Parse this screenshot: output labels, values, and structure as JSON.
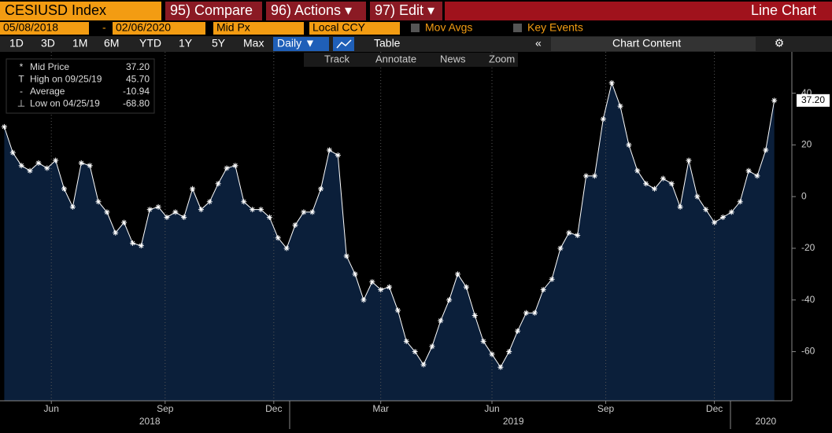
{
  "toolbar": {
    "ticker": "CESIUSD Index",
    "compare": "95) Compare",
    "actions": "96) Actions ▾",
    "edit": "97) Edit ▾",
    "view": "Line Chart",
    "start_date": "05/08/2018",
    "dash": "-",
    "end_date": "02/06/2020",
    "field": "Mid Px",
    "currency": "Local CCY",
    "mov_avgs": "Mov Avgs",
    "key_events": "Key Events",
    "periods": [
      "1D",
      "3D",
      "1M",
      "6M",
      "YTD",
      "1Y",
      "5Y",
      "Max"
    ],
    "frequency": "Daily ▼",
    "table": "Table",
    "chart_content": "Chart Content",
    "tools": [
      "Track",
      "Annotate",
      "News",
      "Zoom"
    ]
  },
  "chart_data": {
    "type": "line",
    "legend": [
      [
        "Mid Price",
        "37.20"
      ],
      [
        "High on 09/25/19",
        "45.70"
      ],
      [
        "Average",
        "-10.94"
      ],
      [
        "Low on 04/25/19",
        "-68.80"
      ]
    ],
    "series": [
      {
        "name": "Mid Price",
        "color": "#ffffff",
        "values": [
          27,
          17,
          12,
          10,
          13,
          11,
          14,
          3,
          -4,
          13,
          12,
          -2,
          -6,
          -14,
          -10,
          -18,
          -19,
          -5,
          -4,
          -8,
          -6,
          -8,
          3,
          -5,
          -2,
          5,
          11,
          12,
          -2,
          -5,
          -5,
          -8,
          -16,
          -20,
          -11,
          -6,
          -6,
          3,
          18,
          16,
          -23,
          -30,
          -40,
          -33,
          -36,
          -35,
          -44,
          -56,
          -60,
          -65,
          -58,
          -48,
          -40,
          -30,
          -35,
          -46,
          -56,
          -61,
          -66,
          -60,
          -52,
          -45,
          -45,
          -36,
          -32,
          -20,
          -14,
          -15,
          8,
          8,
          30,
          44,
          35,
          20,
          10,
          5,
          3,
          7,
          5,
          -4,
          14,
          0,
          -5,
          -10,
          -8,
          -6,
          -2,
          10,
          8,
          18,
          37.2
        ]
      }
    ],
    "last_label": "37.20",
    "fill": "#0b1f3a",
    "ylim": [
      -79,
      56
    ],
    "yticks": [
      -60,
      -40,
      -20,
      0,
      20,
      40
    ],
    "xlim": [
      -0.5,
      91.5
    ],
    "xticks": [
      {
        "value": 5.5,
        "label": "Jun"
      },
      {
        "value": 18.8,
        "label": "Sep"
      },
      {
        "value": 31.5,
        "label": "Dec"
      },
      {
        "value": 44,
        "label": "Mar"
      },
      {
        "value": 57,
        "label": "Jun"
      },
      {
        "value": 70.3,
        "label": "Sep"
      },
      {
        "value": 83,
        "label": "Dec"
      }
    ],
    "years": [
      {
        "value": 17,
        "label": "2018"
      },
      {
        "value": 59.5,
        "label": "2019"
      },
      {
        "value": 89,
        "label": "2020"
      }
    ],
    "grid": true
  }
}
